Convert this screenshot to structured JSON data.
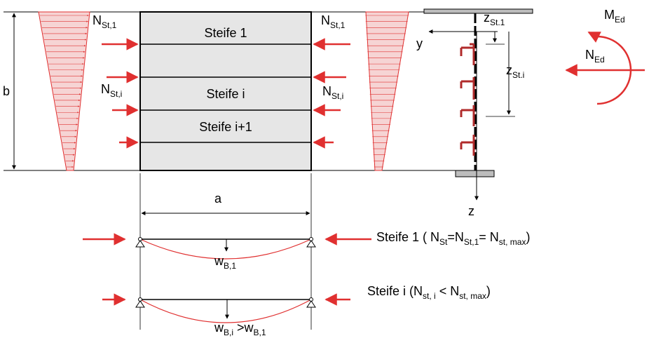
{
  "plate": {
    "stiffener_labels": [
      "Steife 1",
      "Steife i",
      "Steife i+1"
    ],
    "width_label": "b",
    "length_label": "a"
  },
  "forces": {
    "n_st1_left": {
      "main": "N",
      "sub": "St,1"
    },
    "n_st1_right": {
      "main": "N",
      "sub": "St,1"
    },
    "n_sti_left": {
      "main": "N",
      "sub": "St,i"
    },
    "n_sti_right": {
      "main": "N",
      "sub": "St,i"
    }
  },
  "section": {
    "axis_y": "y",
    "axis_z": "z",
    "z_st1": {
      "main": "z",
      "sub": "St.1"
    },
    "z_sti": {
      "main": "z",
      "sub": "St.i"
    },
    "moment": {
      "main": "M",
      "sub": "Ed"
    },
    "normal": {
      "main": "N",
      "sub": "Ed"
    }
  },
  "beams": {
    "beam1": {
      "label_prefix": "Steife 1 ( N",
      "label_sub1": "St",
      "label_mid": "=N",
      "label_sub2": "St,1",
      "label_mid2": "= N",
      "label_sub3": "st, max",
      "label_suffix": ")",
      "deflection": {
        "main": "w",
        "sub": "B,1"
      }
    },
    "beam2": {
      "label_prefix": "Steife i (N",
      "label_sub1": "st, i",
      "label_mid": " < N",
      "label_sub2": "st, max",
      "label_suffix": ")",
      "deflection_a": {
        "main": "w",
        "sub": "B,i"
      },
      "deflection_rel": " >w",
      "deflection_b_sub": "B,1"
    }
  },
  "colors": {
    "red": "#e03030",
    "stress_fill": "#f6d4d4",
    "plate_fill": "#e6e6e6",
    "flange_fill": "#bdbdbd"
  }
}
